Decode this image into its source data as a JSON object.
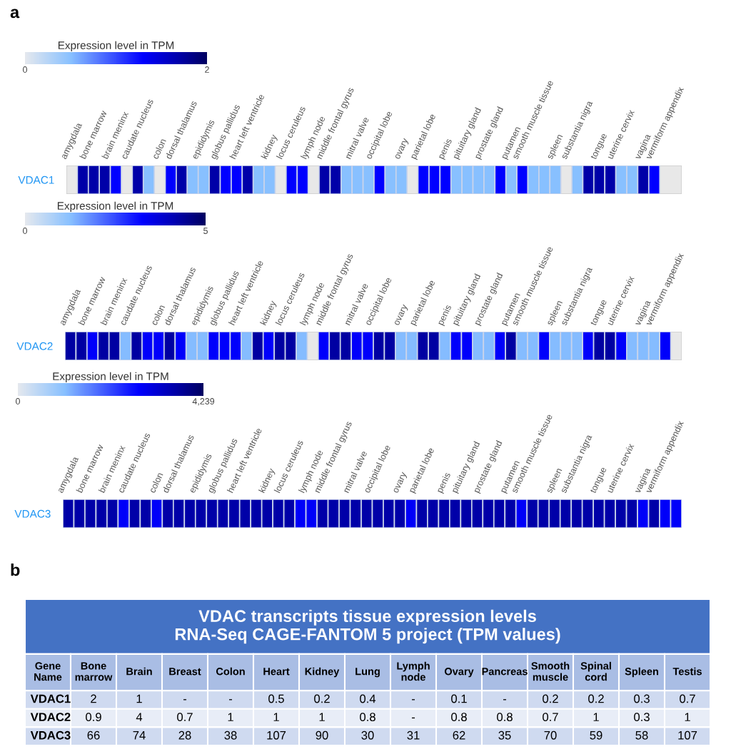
{
  "chart_data": [
    {
      "type": "heatmap",
      "annotations": [
        "a"
      ],
      "clabel": "Expression level in TPM",
      "clim": [
        0,
        2
      ],
      "cticks": [
        0,
        2
      ],
      "categories": [
        "amygdala",
        null,
        "bone marrow",
        null,
        "brain meninx",
        null,
        "caudate nucleus",
        null,
        "colon",
        null,
        "dorsal thalamus",
        null,
        "epididymis",
        null,
        "globus pallidus",
        null,
        "heart left ventricle",
        null,
        "kidney",
        null,
        "locus ceruleus",
        null,
        "lymph node",
        null,
        "middle frontal gyrus",
        null,
        "mitral valve",
        null,
        "occipital lobe",
        null,
        "ovary",
        null,
        "parietal lobe",
        null,
        "penis",
        null,
        "pituitary gland",
        null,
        "prostate gland",
        null,
        "putamen",
        null,
        "smooth muscle tissue",
        null,
        "spleen",
        null,
        "substantia nigra",
        null,
        "tongue",
        null,
        "uterine cervix",
        null,
        "vagina",
        null,
        "vermiform appendix",
        null
      ],
      "y_categories": [
        "VDAC1"
      ],
      "cells": [
        [
          null,
          1.7,
          1.7,
          1.7,
          1.3,
          null,
          1.7,
          0.5,
          null,
          1.3,
          1.7,
          0.5,
          0.5,
          1.7,
          1.3,
          1.3,
          1.7,
          0.5,
          0.5,
          null,
          1.3,
          1.3,
          null,
          1.7,
          1.7,
          0.5,
          0.5,
          0.5,
          1.3,
          0.5,
          0.5,
          null,
          1.3,
          1.3,
          1.3,
          0.5,
          0.5,
          0.5,
          0.5,
          1.3,
          0.5,
          1.3,
          0.5,
          0.5,
          0.5,
          null,
          0.5,
          1.7,
          1.7,
          1.7,
          0.5,
          0.5,
          1.7,
          1.3,
          null,
          null
        ]
      ]
    },
    {
      "type": "heatmap",
      "clabel": "Expression level in TPM",
      "clim": [
        0,
        5
      ],
      "cticks": [
        0,
        5
      ],
      "categories": [
        "amygdala",
        null,
        "bone marrow",
        null,
        "brain meninx",
        null,
        "caudate nucleus",
        null,
        "colon",
        null,
        "dorsal thalamus",
        null,
        "epididymis",
        null,
        "globus pallidus",
        null,
        "heart left ventricle",
        null,
        "kidney",
        null,
        "locus ceruleus",
        null,
        "lymph node",
        null,
        "middle frontal gyrus",
        null,
        "mitral valve",
        null,
        "occipital lobe",
        null,
        "ovary",
        null,
        "parietal lobe",
        null,
        "penis",
        null,
        "pituitary gland",
        null,
        "prostate gland",
        null,
        "putamen",
        null,
        "smooth muscle tissue",
        null,
        "spleen",
        null,
        "substantia nigra",
        null,
        "tongue",
        null,
        "uterine cervix",
        null,
        "vagina",
        null,
        "vermiform appendix",
        null
      ],
      "y_categories": [
        "VDAC2"
      ],
      "cells": [
        [
          4.3,
          4.3,
          3.3,
          4.3,
          4.3,
          1.3,
          4.3,
          3.3,
          3.3,
          4.3,
          3.3,
          1.3,
          1.3,
          3.3,
          3.3,
          3.3,
          1.3,
          4.3,
          3.3,
          4.3,
          4.3,
          1.3,
          null,
          3.3,
          4.3,
          4.3,
          3.3,
          3.3,
          4.3,
          4.3,
          1.3,
          1.3,
          4.3,
          4.3,
          1.3,
          3.3,
          3.3,
          1.3,
          1.3,
          3.3,
          4.3,
          1.3,
          1.3,
          3.3,
          1.3,
          1.3,
          1.3,
          3.3,
          4.3,
          4.3,
          3.3,
          1.3,
          1.3,
          1.3,
          3.3,
          null
        ]
      ]
    },
    {
      "type": "heatmap",
      "clabel": "Expression level in TPM",
      "clim": [
        0,
        4239
      ],
      "cticks": [
        0,
        {
          "value": 4239,
          "label": "4,239"
        }
      ],
      "categories": [
        "amygdala",
        null,
        "bone marrow",
        null,
        "brain meninx",
        null,
        "caudate nucleus",
        null,
        "colon",
        null,
        "dorsal thalamus",
        null,
        "epididymis",
        null,
        "globus pallidus",
        null,
        "heart left ventricle",
        null,
        "kidney",
        null,
        "locus ceruleus",
        null,
        "lymph node",
        null,
        "middle frontal gyrus",
        null,
        "mitral valve",
        null,
        "occipital lobe",
        null,
        "ovary",
        null,
        "parietal lobe",
        null,
        "penis",
        null,
        "pituitary gland",
        null,
        "prostate gland",
        null,
        "putamen",
        null,
        "smooth muscle tissue",
        null,
        "spleen",
        null,
        "substantia nigra",
        null,
        "tongue",
        null,
        "uterine cervix",
        null,
        "vagina",
        null,
        "vermiform appendix",
        null
      ],
      "y_categories": [
        "VDAC3"
      ],
      "cells": [
        [
          3600,
          3600,
          3600,
          3600,
          3600,
          2800,
          3600,
          3600,
          2800,
          3600,
          3600,
          3600,
          3600,
          3600,
          3600,
          3600,
          3600,
          3600,
          3600,
          3600,
          3600,
          2800,
          2800,
          3600,
          3600,
          3600,
          3600,
          3600,
          3600,
          3600,
          3600,
          2800,
          3600,
          3600,
          3600,
          3600,
          3600,
          3600,
          3600,
          3600,
          3600,
          2800,
          3600,
          3600,
          3600,
          3600,
          3600,
          3600,
          3600,
          3600,
          3600,
          3600,
          2800,
          3600,
          2800,
          2800
        ]
      ]
    },
    {
      "type": "heatmap",
      "annotations": [
        "b"
      ],
      "title": "VDAC transcripts tissue expression levels\nRNA-Seq CAGE-FANTOM 5 project (TPM values)",
      "ylabel": "Gene\nName",
      "categories": [
        "Bone\nmarrow",
        "Brain",
        "Breast",
        "Colon",
        "Heart",
        "Kidney",
        "Lung",
        "Lymph\nnode",
        "Ovary",
        "Pancreas",
        "Smooth\nmuscle",
        "Spinal\ncord",
        "Spleen",
        "Testis"
      ],
      "y_categories": [
        "VDAC1",
        "VDAC2",
        "VDAC3"
      ],
      "cells": [
        [
          2,
          1,
          null,
          null,
          0.5,
          0.2,
          0.4,
          null,
          0.1,
          null,
          0.2,
          0.2,
          0.3,
          0.7
        ],
        [
          0.9,
          4,
          0.7,
          1,
          1,
          1,
          0.8,
          null,
          0.8,
          0.8,
          0.7,
          1,
          0.3,
          1
        ],
        [
          66,
          74,
          28,
          38,
          107,
          90,
          30,
          31,
          62,
          35,
          70,
          59,
          58,
          107
        ]
      ],
      "cell_labels": [
        [
          "2",
          "1",
          "-",
          "-",
          "0.5",
          "0.2",
          "0.4",
          "-",
          "0.1",
          "-",
          "0.2",
          "0.2",
          "0.3",
          "0.7"
        ],
        [
          "0.9",
          "4",
          "0.7",
          "1",
          "1",
          "1",
          "0.8",
          "-",
          "0.8",
          "0.8",
          "0.7",
          "1",
          "0.3",
          "1"
        ],
        [
          "66",
          "74",
          "28",
          "38",
          "107",
          "90",
          "30",
          "31",
          "62",
          "35",
          "70",
          "59",
          "58",
          "107"
        ]
      ]
    }
  ]
}
